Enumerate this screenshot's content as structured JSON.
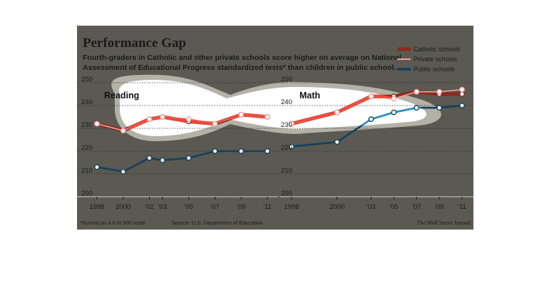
{
  "header": {
    "title": "Performance Gap",
    "dek_line1": "Fourth-graders in Catholic and other private schools score higher on average on National",
    "dek_line2": "Assessment of Educational Progress standardized tests* than children in public school."
  },
  "legend": [
    {
      "label": "Catholic schools",
      "color": "#8b2a20"
    },
    {
      "label": "Private schools",
      "color": "#f2a19a"
    },
    {
      "label": "Public schools",
      "color": "#15405e"
    }
  ],
  "footer": {
    "note": "*Scored on a 0 to 500 scale",
    "source": "Source: U.S. Department of Education",
    "credit": "The Wall Street Journal"
  },
  "chart_data": [
    {
      "type": "line",
      "panel_label": "Reading",
      "x": [
        1998,
        2000,
        2002,
        2003,
        2005,
        2007,
        2009,
        2011
      ],
      "x_tick_labels": [
        "1998",
        "2000",
        "'02",
        "'03",
        "'05",
        "'07",
        "'09",
        "'11"
      ],
      "ylim": [
        200,
        250
      ],
      "y_ticks": [
        200,
        210,
        220,
        230,
        240,
        250
      ],
      "grid": true,
      "legend_position": "top-right",
      "series": [
        {
          "name": "Catholic schools",
          "values": [
            232,
            229,
            234,
            235,
            233,
            232,
            236,
            235
          ]
        },
        {
          "name": "Private schools",
          "values": [
            232,
            229,
            234,
            235,
            234,
            232,
            236,
            235
          ]
        },
        {
          "name": "Public schools",
          "values": [
            213,
            211,
            217,
            216,
            217,
            220,
            220,
            220
          ]
        }
      ]
    },
    {
      "type": "line",
      "panel_label": "Math",
      "x": [
        1996,
        2000,
        2003,
        2005,
        2007,
        2009,
        2011
      ],
      "x_tick_labels": [
        "1996",
        "2000",
        "'03",
        "'05",
        "'07",
        "'09",
        "'11"
      ],
      "ylim": [
        200,
        250
      ],
      "y_ticks": [
        200,
        210,
        220,
        230,
        240,
        250
      ],
      "grid": true,
      "legend_position": "top-right",
      "series": [
        {
          "name": "Catholic schools",
          "values": [
            232,
            237,
            244,
            244,
            246,
            245,
            245
          ]
        },
        {
          "name": "Private schools",
          "values": [
            232,
            237,
            244,
            243,
            246,
            246,
            247
          ]
        },
        {
          "name": "Public schools",
          "values": [
            222,
            224,
            234,
            237,
            239,
            239,
            240
          ]
        }
      ]
    }
  ]
}
